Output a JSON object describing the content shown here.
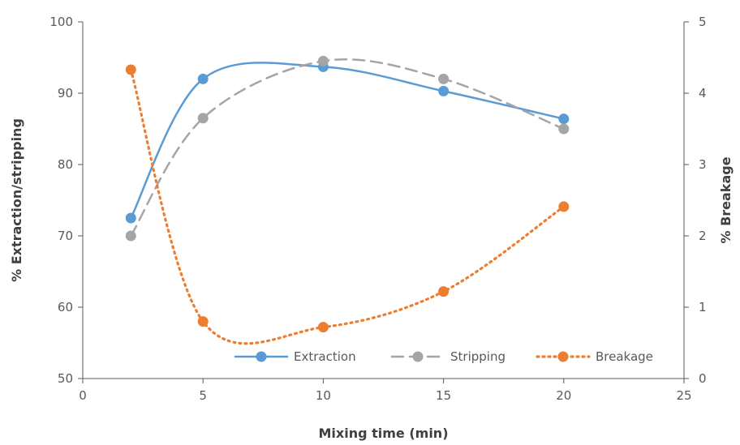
{
  "chart_data": {
    "type": "line",
    "title": "",
    "xlabel": "Mixing time (min)",
    "ylabel": "% Extraction/stripping",
    "y2label": "% Breakage",
    "xlim": [
      0,
      25
    ],
    "ylim": [
      50,
      100
    ],
    "y2lim": [
      0,
      5
    ],
    "xticks": [
      0,
      5,
      10,
      15,
      20,
      25
    ],
    "yticks": [
      50,
      60,
      70,
      80,
      90,
      100
    ],
    "y2ticks": [
      0,
      1,
      2,
      3,
      4,
      5
    ],
    "grid": false,
    "legend_position": "bottom-right",
    "series": [
      {
        "name": "Extraction",
        "axis": "left",
        "color": "#5B9BD5",
        "line_style": "solid",
        "smooth": true,
        "x": [
          2,
          5,
          10,
          15,
          20
        ],
        "values": [
          72.5,
          92.0,
          93.7,
          90.3,
          86.4
        ]
      },
      {
        "name": "Stripping",
        "axis": "left",
        "color": "#A5A5A5",
        "line_style": "dashed",
        "smooth": true,
        "x": [
          2,
          5,
          10,
          15,
          20
        ],
        "values": [
          70.0,
          86.5,
          94.5,
          92.0,
          85.0
        ]
      },
      {
        "name": "Breakage",
        "axis": "right",
        "color": "#ED7D31",
        "line_style": "dotted",
        "smooth": true,
        "x": [
          2,
          5,
          10,
          15,
          20
        ],
        "values": [
          4.33,
          0.8,
          0.72,
          1.22,
          2.41
        ]
      }
    ]
  }
}
